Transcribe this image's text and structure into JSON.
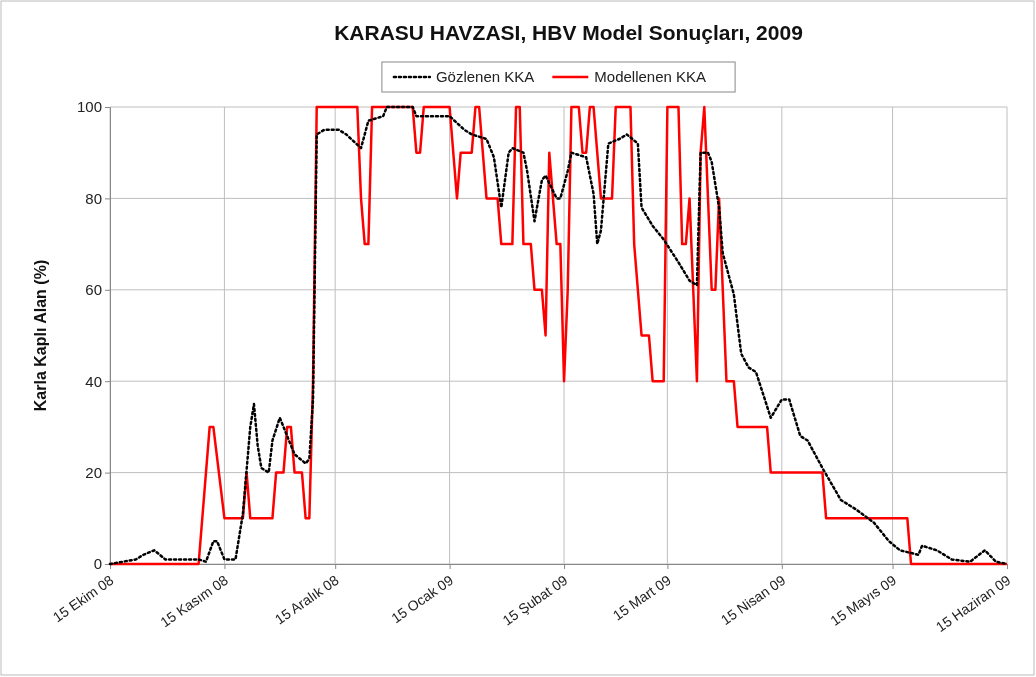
{
  "chart_data": {
    "type": "line",
    "title": "KARASU HAVZASI, HBV Model Sonuçları, 2009",
    "ylabel": "Karla Kaplı Alan (%)",
    "xlim": [
      "2008-10-15",
      "2009-06-15"
    ],
    "xticks": [
      {
        "value": "2008-10-15",
        "label": "15 Ekim 08"
      },
      {
        "value": "2008-11-15",
        "label": "15 Kasım 08"
      },
      {
        "value": "2008-12-15",
        "label": "15 Aralık 08"
      },
      {
        "value": "2009-01-15",
        "label": "15 Ocak 09"
      },
      {
        "value": "2009-02-15",
        "label": "15 Şubat 09"
      },
      {
        "value": "2009-03-15",
        "label": "15 Mart 09"
      },
      {
        "value": "2009-04-15",
        "label": "15 Nisan 09"
      },
      {
        "value": "2009-05-15",
        "label": "15 Mayıs 09"
      },
      {
        "value": "2009-06-15",
        "label": "15 Haziran 09"
      }
    ],
    "ylim": [
      0,
      100
    ],
    "yticks": [
      0,
      20,
      40,
      60,
      80,
      100
    ],
    "grid": true,
    "legend": "top",
    "series": [
      {
        "name": "Gözlenen KKA",
        "color": "#000000",
        "line_style": "dotted",
        "x": [
          "2008-10-15",
          "2008-10-22",
          "2008-10-24",
          "2008-10-27",
          "2008-10-30",
          "2008-11-04",
          "2008-11-08",
          "2008-11-10",
          "2008-11-12",
          "2008-11-13",
          "2008-11-15",
          "2008-11-18",
          "2008-11-20",
          "2008-11-22",
          "2008-11-23",
          "2008-11-24",
          "2008-11-25",
          "2008-11-27",
          "2008-11-28",
          "2008-11-30",
          "2008-12-02",
          "2008-12-04",
          "2008-12-07",
          "2008-12-08",
          "2008-12-09",
          "2008-12-10",
          "2008-12-12",
          "2008-12-16",
          "2008-12-18",
          "2008-12-22",
          "2008-12-24",
          "2008-12-28",
          "2008-12-29",
          "2009-01-05",
          "2009-01-06",
          "2009-01-10",
          "2009-01-15",
          "2009-01-19",
          "2009-01-21",
          "2009-01-25",
          "2009-01-27",
          "2009-01-29",
          "2009-01-31",
          "2009-02-01",
          "2009-02-04",
          "2009-02-05",
          "2009-02-07",
          "2009-02-09",
          "2009-02-10",
          "2009-02-13",
          "2009-02-14",
          "2009-02-16",
          "2009-02-17",
          "2009-02-21",
          "2009-02-23",
          "2009-02-24",
          "2009-02-25",
          "2009-02-27",
          "2009-03-02",
          "2009-03-04",
          "2009-03-07",
          "2009-03-08",
          "2009-03-11",
          "2009-03-14",
          "2009-03-18",
          "2009-03-21",
          "2009-03-23",
          "2009-03-24",
          "2009-03-26",
          "2009-03-27",
          "2009-03-29",
          "2009-03-30",
          "2009-04-02",
          "2009-04-04",
          "2009-04-06",
          "2009-04-08",
          "2009-04-12",
          "2009-04-15",
          "2009-04-17",
          "2009-04-20",
          "2009-04-22",
          "2009-04-26",
          "2009-05-01",
          "2009-05-05",
          "2009-05-10",
          "2009-05-14",
          "2009-05-17",
          "2009-05-22",
          "2009-05-23",
          "2009-05-27",
          "2009-05-31",
          "2009-06-05",
          "2009-06-09",
          "2009-06-12",
          "2009-06-15"
        ],
        "values": [
          0,
          1,
          2,
          3,
          1,
          1,
          1,
          0.5,
          5,
          5,
          1,
          1,
          11,
          30,
          35,
          26,
          21,
          20,
          27,
          32,
          28,
          24,
          22,
          23,
          36,
          94,
          95,
          95,
          94,
          91,
          97,
          98,
          100,
          100,
          98,
          98,
          98,
          95,
          94,
          93,
          89,
          78,
          90,
          91,
          90,
          86,
          75,
          84,
          85,
          80,
          80,
          86,
          90,
          89,
          81,
          70,
          73,
          92,
          93,
          94,
          92,
          78,
          74,
          71,
          66,
          62,
          61,
          90,
          90,
          88,
          78,
          68,
          59,
          46,
          43,
          42,
          32,
          36,
          36,
          28,
          27,
          21,
          14,
          12,
          9,
          5,
          3,
          2,
          4,
          3,
          1,
          0.5,
          3,
          0.5,
          0
        ]
      },
      {
        "name": "Modellenen KKA",
        "color": "#ff0000",
        "line_style": "solid",
        "x": [
          "2008-10-15",
          "2008-11-08",
          "2008-11-11",
          "2008-11-12",
          "2008-11-15",
          "2008-11-20",
          "2008-11-21",
          "2008-11-22",
          "2008-11-28",
          "2008-11-29",
          "2008-12-01",
          "2008-12-02",
          "2008-12-03",
          "2008-12-04",
          "2008-12-06",
          "2008-12-07",
          "2008-12-08",
          "2008-12-09",
          "2008-12-10",
          "2008-12-21",
          "2008-12-22",
          "2008-12-23",
          "2008-12-24",
          "2008-12-25",
          "2009-01-05",
          "2009-01-06",
          "2009-01-07",
          "2009-01-08",
          "2009-01-15",
          "2009-01-17",
          "2009-01-18",
          "2009-01-21",
          "2009-01-22",
          "2009-01-23",
          "2009-01-25",
          "2009-01-28",
          "2009-01-29",
          "2009-02-01",
          "2009-02-02",
          "2009-02-03",
          "2009-02-04",
          "2009-02-06",
          "2009-02-07",
          "2009-02-09",
          "2009-02-10",
          "2009-02-11",
          "2009-02-13",
          "2009-02-14",
          "2009-02-15",
          "2009-02-16",
          "2009-02-17",
          "2009-02-19",
          "2009-02-20",
          "2009-02-21",
          "2009-02-22",
          "2009-02-23",
          "2009-02-25",
          "2009-02-28",
          "2009-03-01",
          "2009-03-05",
          "2009-03-06",
          "2009-03-08",
          "2009-03-10",
          "2009-03-11",
          "2009-03-14",
          "2009-03-15",
          "2009-03-18",
          "2009-03-19",
          "2009-03-20",
          "2009-03-21",
          "2009-03-23",
          "2009-03-24",
          "2009-03-25",
          "2009-03-27",
          "2009-03-28",
          "2009-03-29",
          "2009-03-31",
          "2009-04-02",
          "2009-04-03",
          "2009-04-11",
          "2009-04-12",
          "2009-04-26",
          "2009-04-27",
          "2009-05-19",
          "2009-05-20",
          "2009-06-15"
        ],
        "values": [
          0,
          0,
          30,
          30,
          10,
          10,
          20,
          10,
          10,
          20,
          20,
          30,
          30,
          20,
          20,
          10,
          10,
          40,
          100,
          100,
          80,
          70,
          70,
          100,
          100,
          90,
          90,
          100,
          100,
          80,
          90,
          90,
          100,
          100,
          80,
          80,
          70,
          70,
          100,
          100,
          70,
          70,
          60,
          60,
          50,
          90,
          70,
          70,
          40,
          60,
          100,
          100,
          90,
          90,
          100,
          100,
          80,
          80,
          100,
          100,
          70,
          50,
          50,
          40,
          40,
          100,
          100,
          70,
          70,
          80,
          40,
          90,
          100,
          60,
          60,
          80,
          40,
          40,
          30,
          30,
          20,
          20,
          10,
          10,
          0,
          0
        ]
      }
    ]
  }
}
